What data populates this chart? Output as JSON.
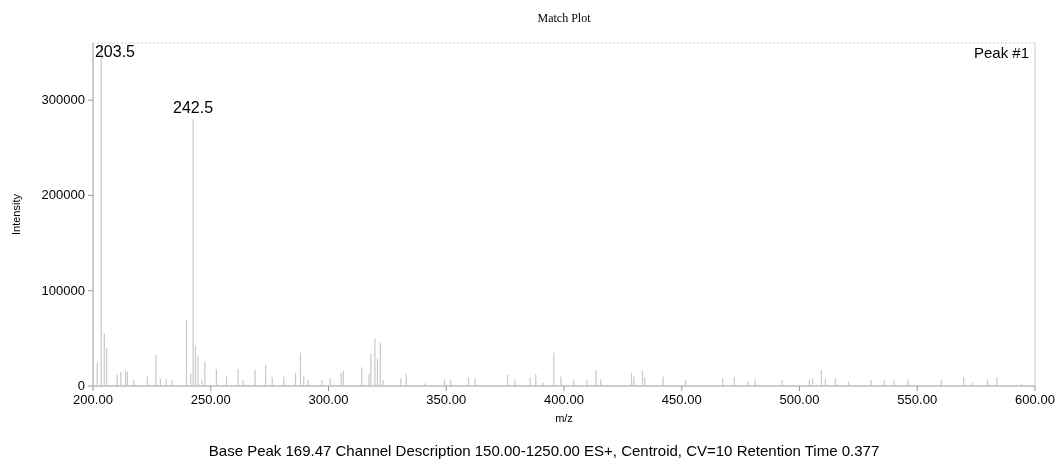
{
  "chart_data": {
    "type": "bar",
    "title": "Match Plot",
    "xlabel": "m/z",
    "ylabel": "Intensity",
    "x": [
      201.8,
      203.5,
      204.8,
      205.8,
      210.3,
      211.8,
      213.8,
      214.6,
      217.3,
      223.1,
      226.7,
      228.6,
      231.1,
      233.5,
      239.7,
      241.5,
      242.5,
      243.5,
      244.6,
      246.3,
      247.5,
      252.4,
      256.7,
      261.6,
      263.7,
      268.8,
      273.3,
      276.1,
      281.0,
      286.0,
      288.1,
      289.5,
      291.3,
      297.2,
      300.7,
      305.4,
      306.3,
      314.1,
      317.2,
      318.0,
      319.7,
      320.8,
      322.0,
      323.2,
      330.7,
      333.0,
      340.8,
      349.2,
      351.9,
      359.5,
      362.2,
      376.0,
      379.1,
      385.6,
      388.0,
      391.1,
      395.7,
      398.7,
      404.1,
      409.7,
      413.6,
      415.6,
      428.7,
      429.7,
      433.3,
      434.3,
      442.1,
      451.6,
      467.4,
      472.3,
      478.0,
      481.1,
      492.6,
      504.2,
      505.6,
      509.3,
      511.0,
      515.2,
      520.8,
      530.4,
      536.0,
      540.2,
      546.1,
      560.2,
      569.7,
      573.5,
      579.9,
      583.8,
      594.2
    ],
    "values": [
      24600,
      358000,
      55000,
      40000,
      11600,
      15000,
      16000,
      15000,
      6300,
      9800,
      32600,
      8000,
      7000,
      6300,
      69500,
      13000,
      280000,
      42000,
      31000,
      7000,
      25600,
      17500,
      9800,
      17500,
      6300,
      16800,
      22000,
      9100,
      9800,
      14000,
      35000,
      9800,
      6300,
      6300,
      8000,
      14000,
      16000,
      19600,
      12600,
      34400,
      50000,
      29000,
      45600,
      6300,
      8000,
      12600,
      2800,
      7000,
      6300,
      9100,
      8000,
      11600,
      7000,
      9100,
      12600,
      3500,
      35000,
      9800,
      7000,
      6300,
      16800,
      7000,
      14000,
      9800,
      16000,
      9100,
      9800,
      6300,
      8000,
      9100,
      4500,
      7000,
      6300,
      6300,
      8000,
      16800,
      8000,
      8000,
      4500,
      6300,
      6300,
      5600,
      7000,
      6300,
      9100,
      3500,
      7000,
      9100,
      2100
    ],
    "color": "#c8c8c8",
    "xlim": [
      200,
      600
    ],
    "xticks": [
      {
        "value": 200,
        "label": "200.00"
      },
      {
        "value": 250,
        "label": "250.00"
      },
      {
        "value": 300,
        "label": "300.00"
      },
      {
        "value": 350,
        "label": "350.00"
      },
      {
        "value": 400,
        "label": "400.00"
      },
      {
        "value": 450,
        "label": "450.00"
      },
      {
        "value": 500,
        "label": "500.00"
      },
      {
        "value": 550,
        "label": "550.00"
      },
      {
        "value": 600,
        "label": "600.00"
      }
    ],
    "ylim": [
      0,
      360000
    ],
    "yticks": [
      0,
      100000,
      200000,
      300000
    ],
    "annotations": [
      {
        "text": "203.5",
        "x": 203.5,
        "y": 358000
      },
      {
        "text": "242.5",
        "x": 242.5,
        "y": 280000
      },
      "Peak #1",
      "Base Peak 169.47 Channel Description 150.00-1250.00 ES+, Centroid, CV=10 Retention Time 0.377"
    ]
  }
}
